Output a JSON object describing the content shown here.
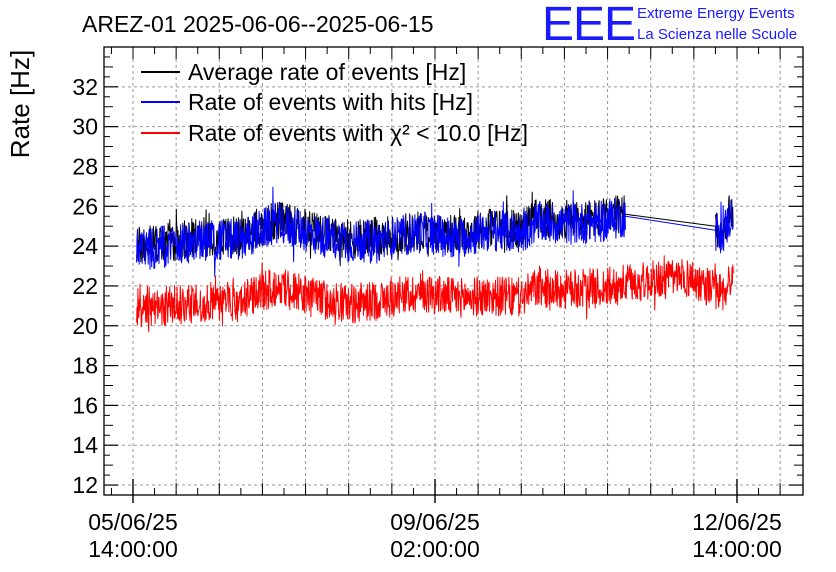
{
  "chart_data": {
    "type": "line",
    "title": "AREZ-01 2025-06-06--2025-06-15",
    "ylabel": "Rate [Hz]",
    "xlabel": "",
    "ylim": [
      11.5,
      34
    ],
    "y_ticks": [
      "12",
      "14",
      "16",
      "18",
      "20",
      "22",
      "24",
      "26",
      "28",
      "30",
      "32"
    ],
    "x_ticks": [
      {
        "date": "05/06/25",
        "time": "14:00:00"
      },
      {
        "date": "09/06/25",
        "time": "02:00:00"
      },
      {
        "date": "12/06/25",
        "time": "14:00:00"
      }
    ],
    "grid": true,
    "legend_position": "top-left",
    "x_unit": "hours",
    "x_range": [
      0,
      168
    ],
    "series": [
      {
        "name": "Average rate of events [Hz]",
        "color": "#000000",
        "points": [
          [
            1,
            24.0
          ],
          [
            10,
            24.2
          ],
          [
            20,
            24.5
          ],
          [
            30,
            24.5
          ],
          [
            40,
            25.3
          ],
          [
            50,
            24.8
          ],
          [
            60,
            24.3
          ],
          [
            70,
            24.5
          ],
          [
            80,
            24.8
          ],
          [
            90,
            24.6
          ],
          [
            100,
            25.0
          ],
          [
            108,
            24.8
          ],
          [
            112,
            25.4
          ],
          [
            120,
            25.3
          ],
          [
            130,
            25.4
          ],
          [
            137,
            25.6
          ],
          [
            162,
            25.0
          ],
          [
            164,
            24.8
          ],
          [
            166,
            25.6
          ],
          [
            167,
            25.9
          ]
        ]
      },
      {
        "name": "Rate of events with hits [Hz]",
        "color": "#0000ff",
        "points": [
          [
            1,
            23.8
          ],
          [
            10,
            24.0
          ],
          [
            20,
            24.3
          ],
          [
            30,
            24.3
          ],
          [
            40,
            25.2
          ],
          [
            50,
            24.6
          ],
          [
            60,
            24.2
          ],
          [
            70,
            24.3
          ],
          [
            80,
            24.7
          ],
          [
            90,
            24.4
          ],
          [
            100,
            24.8
          ],
          [
            108,
            24.6
          ],
          [
            112,
            25.2
          ],
          [
            120,
            25.1
          ],
          [
            130,
            25.2
          ],
          [
            137,
            25.5
          ],
          [
            162,
            24.8
          ],
          [
            164,
            24.6
          ],
          [
            166,
            25.4
          ],
          [
            167,
            25.7
          ]
        ]
      },
      {
        "name": "Rate of events with χ² < 10.0 [Hz]",
        "color": "#ff0000",
        "points": [
          [
            1,
            20.9
          ],
          [
            10,
            21.0
          ],
          [
            20,
            21.2
          ],
          [
            30,
            21.2
          ],
          [
            40,
            22.0
          ],
          [
            50,
            21.4
          ],
          [
            60,
            21.1
          ],
          [
            70,
            21.3
          ],
          [
            80,
            21.7
          ],
          [
            90,
            21.4
          ],
          [
            100,
            21.5
          ],
          [
            108,
            21.4
          ],
          [
            112,
            21.9
          ],
          [
            120,
            21.8
          ],
          [
            130,
            21.9
          ],
          [
            137,
            22.1
          ],
          [
            146,
            22.3
          ],
          [
            155,
            22.4
          ],
          [
            162,
            21.8
          ],
          [
            164,
            21.6
          ],
          [
            166,
            22.3
          ],
          [
            167,
            22.5
          ]
        ]
      }
    ]
  }
}
